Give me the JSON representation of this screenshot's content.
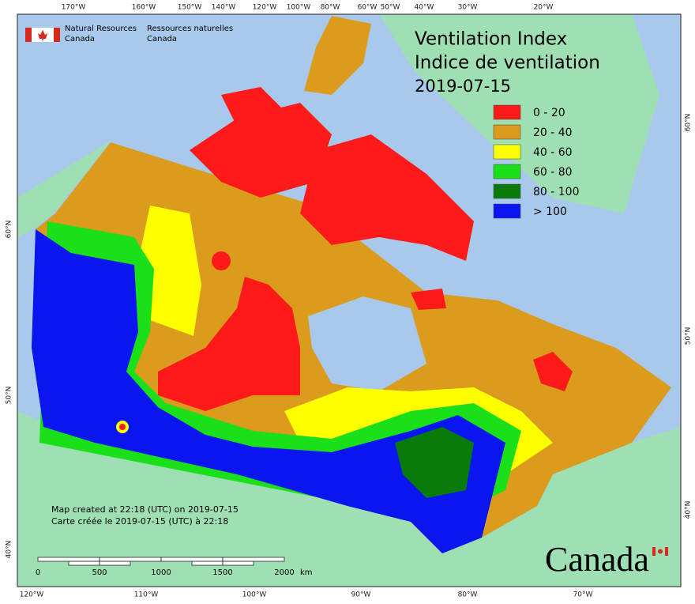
{
  "header": {
    "agency_en": [
      "Natural Resources",
      "Canada"
    ],
    "agency_fr": [
      "Ressources naturelles",
      "Canada"
    ]
  },
  "title": [
    "Ventilation Index",
    "Indice de ventilation",
    "2019-07-15"
  ],
  "legend": [
    {
      "label": "0 - 20",
      "color": "#ff1a1a"
    },
    {
      "label": "20 - 40",
      "color": "#db9b1c"
    },
    {
      "label": "40 - 60",
      "color": "#ffff00"
    },
    {
      "label": "60 - 80",
      "color": "#19e019"
    },
    {
      "label": "80 - 100",
      "color": "#0a7a0a"
    },
    {
      "label": "> 100",
      "color": "#0a16f0"
    }
  ],
  "graticule": {
    "top": [
      "170°W",
      "160°W",
      "150°W",
      "140°W",
      "120°W",
      "100°W",
      "80°W",
      "60°W",
      "50°W",
      "40°W",
      "30°W",
      "20°W"
    ],
    "bottom": [
      "120°W",
      "110°W",
      "100°W",
      "90°W",
      "80°W",
      "70°W"
    ],
    "left": [
      "60°N",
      "50°N",
      "40°N"
    ],
    "right": [
      "60°N",
      "50°N",
      "40°N"
    ]
  },
  "credits": [
    "Map created at 22:18 (UTC) on 2019-07-15",
    "Carte créée le 2019-07-15 (UTC) à 22:18"
  ],
  "scale": {
    "labels": [
      "0",
      "500",
      "1000",
      "1500",
      "2000"
    ],
    "unit": "km"
  },
  "wordmark": "Canada"
}
